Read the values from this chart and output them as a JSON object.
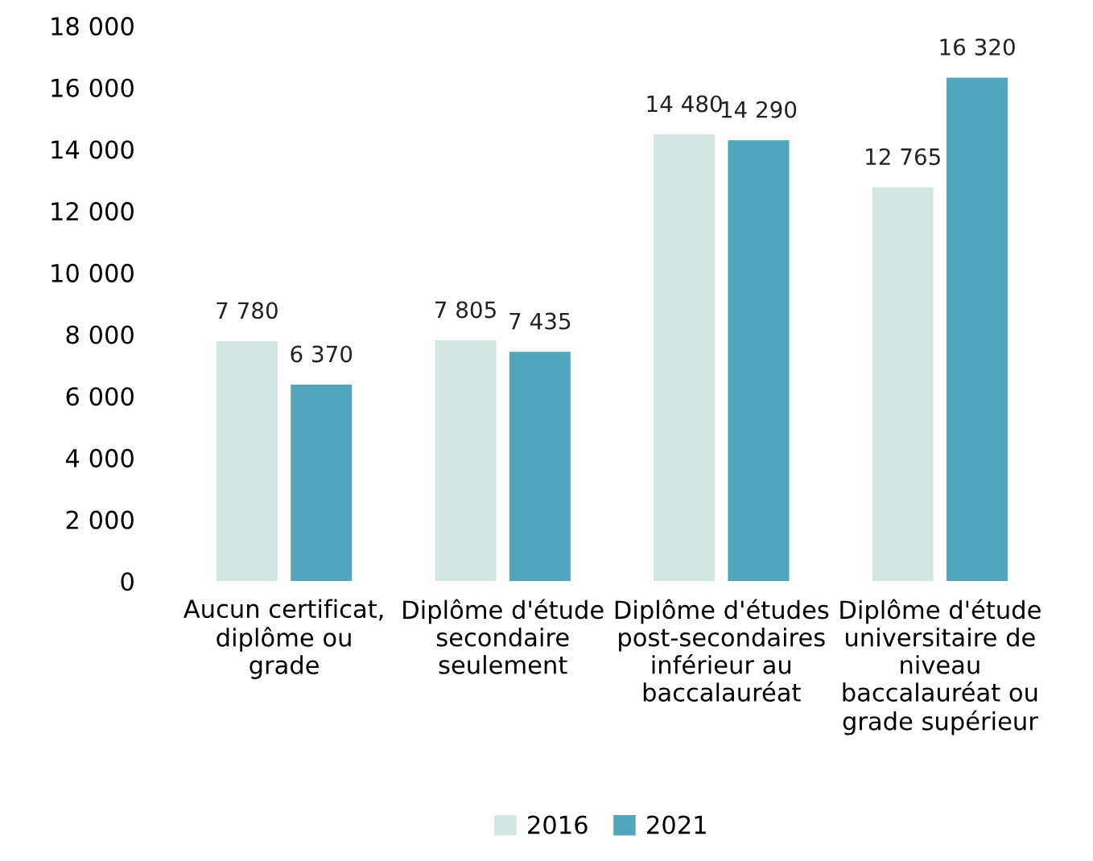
{
  "chart_data": {
    "type": "bar",
    "categories": [
      "Aucun certificat,\ndiplôme ou\ngrade",
      "Diplôme d'étude\nsecondaire\nseulement",
      "Diplôme d'études\npost-secondaires\ninférieur au\nbaccalauréat",
      "Diplôme d'étude\nuniversitaire de\nniveau\nbaccalauréat ou\ngrade supérieur"
    ],
    "series": [
      {
        "name": "2016",
        "color": "#d3e6e4",
        "values": [
          7780,
          7805,
          14480,
          12765
        ],
        "value_labels": [
          "7 780",
          "7 805",
          "14 480",
          "12 765"
        ]
      },
      {
        "name": "2021",
        "color": "#52a5bb",
        "values": [
          6370,
          7435,
          14290,
          16320
        ],
        "value_labels": [
          "6 370",
          "7 435",
          "14 290",
          "16 320"
        ]
      }
    ],
    "ylim": [
      0,
      18000
    ],
    "yticks": [
      {
        "value": 0,
        "label": "0"
      },
      {
        "value": 2000,
        "label": "2 000"
      },
      {
        "value": 4000,
        "label": "4 000"
      },
      {
        "value": 6000,
        "label": "6 000"
      },
      {
        "value": 8000,
        "label": "8 000"
      },
      {
        "value": 10000,
        "label": "10 000"
      },
      {
        "value": 12000,
        "label": "12 000"
      },
      {
        "value": 14000,
        "label": "14 000"
      },
      {
        "value": 16000,
        "label": "16 000"
      },
      {
        "value": 18000,
        "label": "18 000"
      }
    ],
    "grid": false,
    "legend": "bottom"
  }
}
